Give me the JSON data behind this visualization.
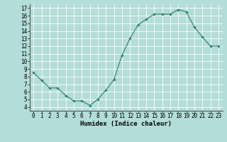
{
  "x": [
    0,
    1,
    2,
    3,
    4,
    5,
    6,
    7,
    8,
    9,
    10,
    11,
    12,
    13,
    14,
    15,
    16,
    17,
    18,
    19,
    20,
    21,
    22,
    23
  ],
  "y": [
    8.5,
    7.5,
    6.5,
    6.5,
    5.5,
    4.8,
    4.8,
    4.2,
    5.0,
    6.2,
    7.6,
    10.8,
    13.0,
    14.8,
    15.5,
    16.2,
    16.2,
    16.2,
    16.8,
    16.5,
    14.5,
    13.2,
    12.0,
    12.0
  ],
  "xlabel": "Humidex (Indice chaleur)",
  "xlim": [
    -0.5,
    23.5
  ],
  "ylim": [
    3.5,
    17.5
  ],
  "yticks": [
    4,
    5,
    6,
    7,
    8,
    9,
    10,
    11,
    12,
    13,
    14,
    15,
    16,
    17
  ],
  "xticks": [
    0,
    1,
    2,
    3,
    4,
    5,
    6,
    7,
    8,
    9,
    10,
    11,
    12,
    13,
    14,
    15,
    16,
    17,
    18,
    19,
    20,
    21,
    22,
    23
  ],
  "line_color": "#2e7d6e",
  "marker_color": "#2e7d6e",
  "bg_color": "#b2ddd8",
  "grid_color": "#ffffff",
  "xlabel_fontsize": 6.5,
  "tick_fontsize": 5.5
}
